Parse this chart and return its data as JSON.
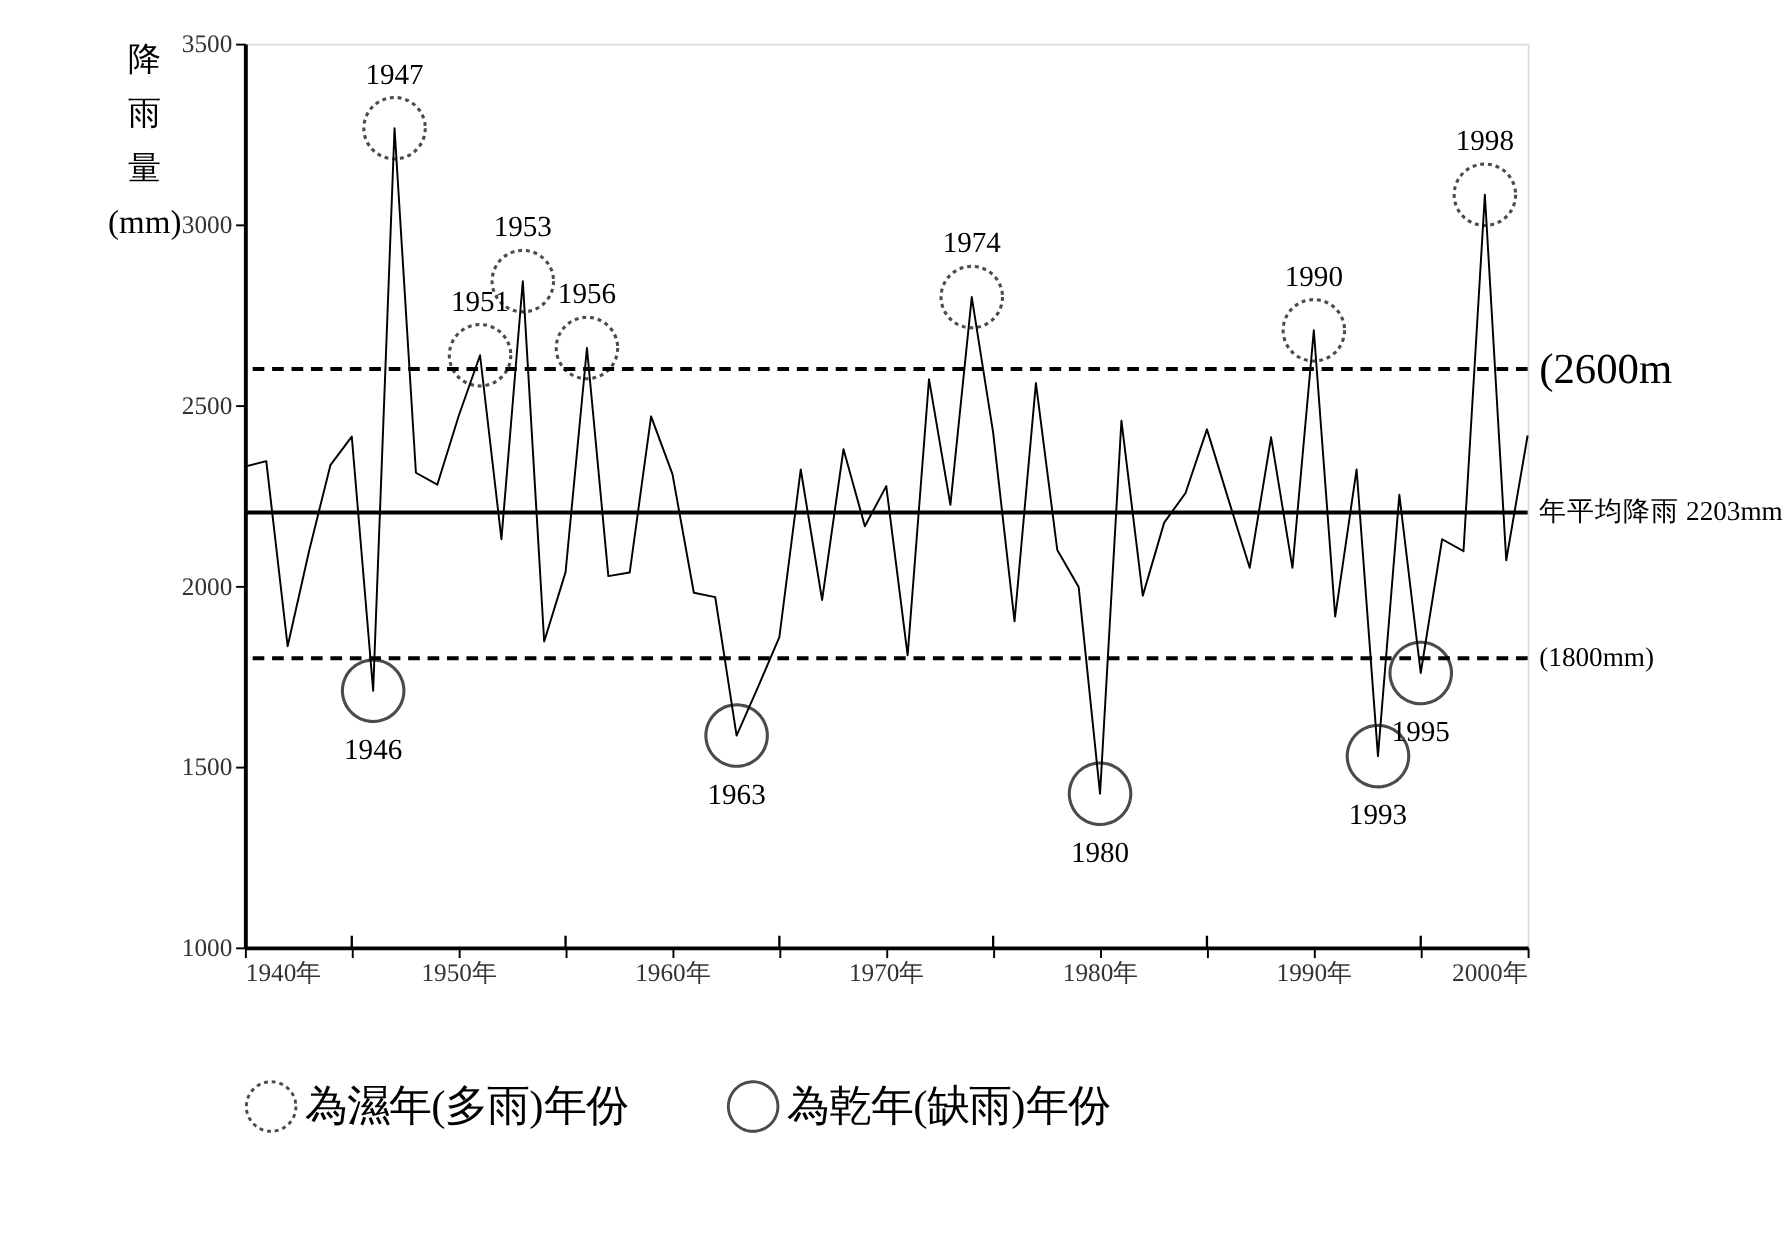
{
  "chart_data": {
    "type": "line",
    "ylabel": "降雨量(mm)",
    "x": [
      1940,
      1941,
      1942,
      1943,
      1944,
      1945,
      1946,
      1947,
      1948,
      1949,
      1950,
      1951,
      1952,
      1953,
      1954,
      1955,
      1956,
      1957,
      1958,
      1959,
      1960,
      1961,
      1962,
      1963,
      1964,
      1965,
      1966,
      1967,
      1968,
      1969,
      1970,
      1971,
      1972,
      1973,
      1974,
      1975,
      1976,
      1977,
      1978,
      1979,
      1980,
      1981,
      1982,
      1983,
      1984,
      1985,
      1986,
      1987,
      1988,
      1989,
      1990,
      1991,
      1992,
      1993,
      1994,
      1995,
      1996,
      1997,
      1998,
      1999,
      2000
    ],
    "series": [
      {
        "color": "#000000",
        "marker": "none",
        "values": [
          2330,
          2345,
          1833,
          2096,
          2334,
          2413,
          1710,
          3266,
          2313,
          2280,
          2470,
          2638,
          2129,
          2843,
          1846,
          2038,
          2658,
          2027,
          2037,
          2469,
          2309,
          1981,
          1969,
          1586,
          1720,
          1858,
          2322,
          1961,
          2378,
          2165,
          2276,
          1808,
          2572,
          2224,
          2799,
          2424,
          1902,
          2561,
          2099,
          1997,
          1425,
          2457,
          1973,
          2175,
          2257,
          2433,
          2240,
          2050,
          2411,
          2050,
          2707,
          1915,
          2322,
          1529,
          2252,
          1759,
          2129,
          2096,
          3082,
          2071,
          2416
        ]
      },
      {
        "name": "為濕年(多雨)年份",
        "type": "scatter",
        "color": "#000000",
        "marker": "circle",
        "line_style": "dotted",
        "x": [
          1947,
          1951,
          1953,
          1956,
          1974,
          1990,
          1998
        ],
        "values": [
          3266,
          2638,
          2843,
          2658,
          2799,
          2707,
          3082
        ]
      },
      {
        "name": "為乾年(缺雨)年份",
        "type": "scatter",
        "color": "#000000",
        "marker": "circle",
        "line_style": "solid",
        "x": [
          1946,
          1963,
          1980,
          1993,
          1995
        ],
        "values": [
          1710,
          1586,
          1425,
          1529,
          1759
        ]
      }
    ],
    "xlim": [
      1940,
      2000
    ],
    "xticks": [
      {
        "value": 1940,
        "label": "1940年"
      },
      {
        "value": 1945,
        "label": null
      },
      {
        "value": 1950,
        "label": "1950年"
      },
      {
        "value": 1955,
        "label": null
      },
      {
        "value": 1960,
        "label": "1960年"
      },
      {
        "value": 1965,
        "label": null
      },
      {
        "value": 1970,
        "label": "1970年"
      },
      {
        "value": 1975,
        "label": null
      },
      {
        "value": 1980,
        "label": "1980年"
      },
      {
        "value": 1985,
        "label": null
      },
      {
        "value": 1990,
        "label": "1990年"
      },
      {
        "value": 1995,
        "label": null
      },
      {
        "value": 2000,
        "label": "2000年"
      }
    ],
    "ylim": [
      1000,
      3500
    ],
    "yticks": [
      1000,
      1500,
      2000,
      2500,
      3000,
      3500
    ],
    "ref_lines": [
      {
        "axis": "y",
        "value": 2203,
        "label": "年平均降雨 2203mm",
        "line_style": "solid"
      },
      {
        "axis": "y",
        "value": 2600,
        "label": "(2600m",
        "line_style": "dashed"
      },
      {
        "axis": "y",
        "value": 1800,
        "label": "(1800mm)",
        "line_style": "dashed"
      }
    ],
    "annotations": [
      {
        "text": "1947",
        "x": 1947,
        "y": 3266
      },
      {
        "text": "1951",
        "x": 1951,
        "y": 2638
      },
      {
        "text": "1953",
        "x": 1953,
        "y": 2843
      },
      {
        "text": "1956",
        "x": 1956,
        "y": 2658
      },
      {
        "text": "1974",
        "x": 1974,
        "y": 2799
      },
      {
        "text": "1990",
        "x": 1990,
        "y": 2707
      },
      {
        "text": "1998",
        "x": 1998,
        "y": 3082
      },
      {
        "text": "1946",
        "x": 1946,
        "y": 1710
      },
      {
        "text": "1963",
        "x": 1963,
        "y": 1586
      },
      {
        "text": "1980",
        "x": 1980,
        "y": 1425
      },
      {
        "text": "1993",
        "x": 1993,
        "y": 1529
      },
      {
        "text": "1995",
        "x": 1995,
        "y": 1759
      }
    ],
    "grid": false,
    "legend": "bottom"
  }
}
